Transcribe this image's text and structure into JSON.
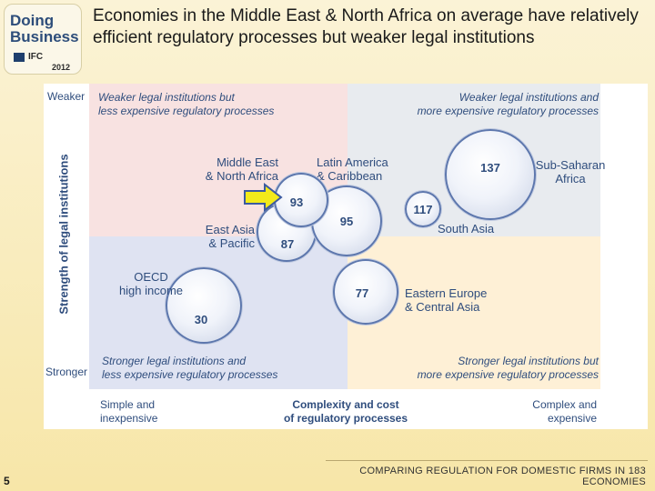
{
  "logo": {
    "line1": "Doing",
    "line2": "Business",
    "org": "IFC",
    "year": "2012"
  },
  "slide_title": "Economies in the Middle East & North Africa on average have relatively efficient regulatory processes but weaker legal institutions",
  "chart_data": {
    "type": "scatter",
    "title": "",
    "xlabel": "Complexity and cost\nof regulatory processes",
    "ylabel": "Strength of legal institutions",
    "x_axis_ends": {
      "left": "Simple and\ninexpensive",
      "right": "Complex and\nexpensive"
    },
    "y_axis_ends": {
      "top": "Weaker",
      "bottom": "Stronger"
    },
    "quadrants": {
      "top_left": "Weaker legal institutions but\nless expensive regulatory processes",
      "top_right": "Weaker legal institutions and\nmore expensive regulatory processes",
      "bottom_left": "Stronger legal institutions and\nless expensive regulatory processes",
      "bottom_right": "Stronger legal institutions but\nmore expensive regulatory processes"
    },
    "series": [
      {
        "name": "Middle East\n& North Africa",
        "value": 93
      },
      {
        "name": "Latin America\n& Caribbean",
        "value": 95
      },
      {
        "name": "East Asia\n& Pacific",
        "value": 87
      },
      {
        "name": "Sub-Saharan\nAfrica",
        "value": 137
      },
      {
        "name": "South Asia",
        "value": 117
      },
      {
        "name": "OECD\nhigh income",
        "value": 30
      },
      {
        "name": "Eastern Europe\n& Central Asia",
        "value": 77
      }
    ],
    "highlight": "Middle East\n& North Africa",
    "grid": false,
    "legend": "none"
  },
  "slide_number": "5",
  "footer": "COMPARING REGULATION FOR DOMESTIC FIRMS IN 183 ECONOMIES",
  "colors": {
    "accent": "#2f4d7d",
    "arrow": "#f2ea1a"
  }
}
